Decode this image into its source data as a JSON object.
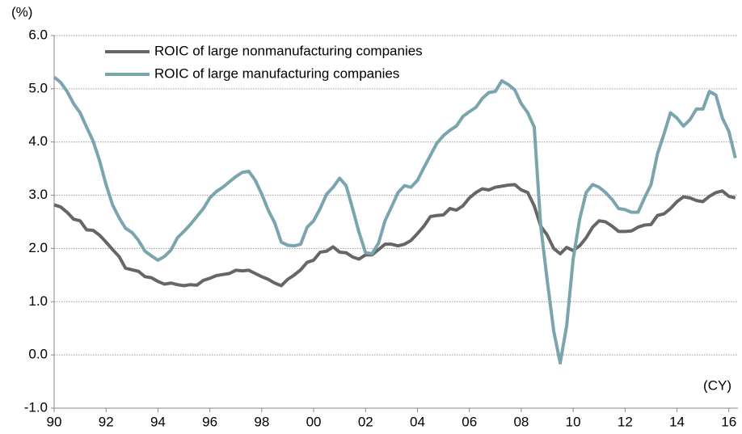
{
  "chart_data": {
    "type": "line",
    "annotations": [
      "(%)",
      "(CY)"
    ],
    "x": [
      1990,
      1990.25,
      1990.5,
      1990.75,
      1991,
      1991.25,
      1991.5,
      1991.75,
      1992,
      1992.25,
      1992.5,
      1992.75,
      1993,
      1993.25,
      1993.5,
      1993.75,
      1994,
      1994.25,
      1994.5,
      1994.75,
      1995,
      1995.25,
      1995.5,
      1995.75,
      1996,
      1996.25,
      1996.5,
      1996.75,
      1997,
      1997.25,
      1997.5,
      1997.75,
      1998,
      1998.25,
      1998.5,
      1998.75,
      1999,
      1999.25,
      1999.5,
      1999.75,
      2000,
      2000.25,
      2000.5,
      2000.75,
      2001,
      2001.25,
      2001.5,
      2001.75,
      2002,
      2002.25,
      2002.5,
      2002.75,
      2003,
      2003.25,
      2003.5,
      2003.75,
      2004,
      2004.25,
      2004.5,
      2004.75,
      2005,
      2005.25,
      2005.5,
      2005.75,
      2006,
      2006.25,
      2006.5,
      2006.75,
      2007,
      2007.25,
      2007.5,
      2007.75,
      2008,
      2008.25,
      2008.5,
      2008.75,
      2009,
      2009.25,
      2009.5,
      2009.75,
      2010,
      2010.25,
      2010.5,
      2010.75,
      2011,
      2011.25,
      2011.5,
      2011.75,
      2012,
      2012.25,
      2012.5,
      2012.75,
      2013,
      2013.25,
      2013.5,
      2013.75,
      2014,
      2014.25,
      2014.5,
      2014.75,
      2015,
      2015.25,
      2015.5,
      2015.75,
      2016,
      2016.25
    ],
    "series": [
      {
        "name": "ROIC of large nonmanufacturing companies",
        "color": "#666666",
        "values": [
          2.82,
          2.78,
          2.68,
          2.55,
          2.52,
          2.35,
          2.34,
          2.25,
          2.12,
          1.98,
          1.85,
          1.63,
          1.6,
          1.57,
          1.47,
          1.45,
          1.38,
          1.33,
          1.35,
          1.32,
          1.3,
          1.32,
          1.31,
          1.4,
          1.44,
          1.49,
          1.51,
          1.53,
          1.59,
          1.58,
          1.59,
          1.53,
          1.47,
          1.42,
          1.35,
          1.3,
          1.42,
          1.5,
          1.6,
          1.74,
          1.78,
          1.93,
          1.95,
          2.03,
          1.93,
          1.92,
          1.84,
          1.8,
          1.88,
          1.88,
          1.98,
          2.08,
          2.08,
          2.05,
          2.08,
          2.15,
          2.28,
          2.42,
          2.6,
          2.62,
          2.63,
          2.75,
          2.72,
          2.8,
          2.95,
          3.05,
          3.12,
          3.1,
          3.15,
          3.17,
          3.19,
          3.2,
          3.1,
          3.05,
          2.8,
          2.42,
          2.25,
          2.0,
          1.9,
          2.02,
          1.96,
          2.05,
          2.2,
          2.4,
          2.52,
          2.5,
          2.42,
          2.32,
          2.32,
          2.33,
          2.4,
          2.44,
          2.45,
          2.62,
          2.65,
          2.75,
          2.88,
          2.97,
          2.95,
          2.9,
          2.88,
          2.98,
          3.05,
          3.08,
          2.98,
          2.95
        ]
      },
      {
        "name": "ROIC of large manufacturing companies",
        "color": "#7aa5ad",
        "values": [
          5.22,
          5.12,
          4.95,
          4.72,
          4.55,
          4.28,
          4.02,
          3.65,
          3.2,
          2.82,
          2.58,
          2.38,
          2.3,
          2.15,
          1.95,
          1.86,
          1.78,
          1.85,
          1.97,
          2.2,
          2.32,
          2.45,
          2.6,
          2.75,
          2.95,
          3.07,
          3.15,
          3.25,
          3.35,
          3.43,
          3.45,
          3.28,
          3.02,
          2.72,
          2.48,
          2.12,
          2.06,
          2.05,
          2.08,
          2.4,
          2.52,
          2.75,
          3.02,
          3.15,
          3.32,
          3.18,
          2.75,
          2.3,
          1.92,
          1.9,
          2.1,
          2.52,
          2.78,
          3.05,
          3.18,
          3.15,
          3.28,
          3.52,
          3.75,
          3.98,
          4.12,
          4.22,
          4.3,
          4.48,
          4.57,
          4.65,
          4.82,
          4.93,
          4.95,
          5.15,
          5.08,
          4.98,
          4.72,
          4.55,
          4.28,
          2.42,
          1.4,
          0.45,
          -0.15,
          0.55,
          1.8,
          2.55,
          3.05,
          3.2,
          3.15,
          3.05,
          2.92,
          2.75,
          2.73,
          2.68,
          2.68,
          2.95,
          3.2,
          3.78,
          4.15,
          4.55,
          4.45,
          4.3,
          4.42,
          4.62,
          4.62,
          4.95,
          4.88,
          4.45,
          4.2,
          3.7
        ]
      }
    ],
    "xlim": [
      1990,
      2016.35
    ],
    "xticks": [
      {
        "value": 1990,
        "label": "90"
      },
      {
        "value": 1992,
        "label": "92"
      },
      {
        "value": 1994,
        "label": "94"
      },
      {
        "value": 1996,
        "label": "96"
      },
      {
        "value": 1998,
        "label": "98"
      },
      {
        "value": 2000,
        "label": "00"
      },
      {
        "value": 2002,
        "label": "02"
      },
      {
        "value": 2004,
        "label": "04"
      },
      {
        "value": 2006,
        "label": "06"
      },
      {
        "value": 2008,
        "label": "08"
      },
      {
        "value": 2010,
        "label": "10"
      },
      {
        "value": 2012,
        "label": "12"
      },
      {
        "value": 2014,
        "label": "14"
      },
      {
        "value": 2016,
        "label": "16"
      }
    ],
    "ylim": [
      -1,
      6
    ],
    "yticks": [
      {
        "value": -1,
        "label": "-1.0"
      },
      {
        "value": 0,
        "label": "0.0"
      },
      {
        "value": 1,
        "label": "1.0"
      },
      {
        "value": 2,
        "label": "2.0"
      },
      {
        "value": 3,
        "label": "3.0"
      },
      {
        "value": 4,
        "label": "4.0"
      },
      {
        "value": 5,
        "label": "5.0"
      },
      {
        "value": 6,
        "label": "6.0"
      }
    ],
    "grid": true,
    "legend": "upper left"
  }
}
